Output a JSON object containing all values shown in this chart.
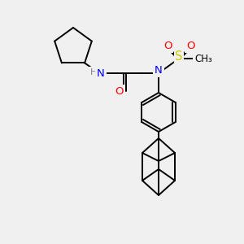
{
  "background_color": "#f0f0f0",
  "bond_color": "#000000",
  "bond_width": 1.4,
  "atom_colors": {
    "N": "#0000ff",
    "O": "#ff0000",
    "S": "#cccc00",
    "H": "#808080",
    "C": "#000000"
  },
  "font_size": 8.5,
  "figsize": [
    3.0,
    3.0
  ],
  "dpi": 100
}
